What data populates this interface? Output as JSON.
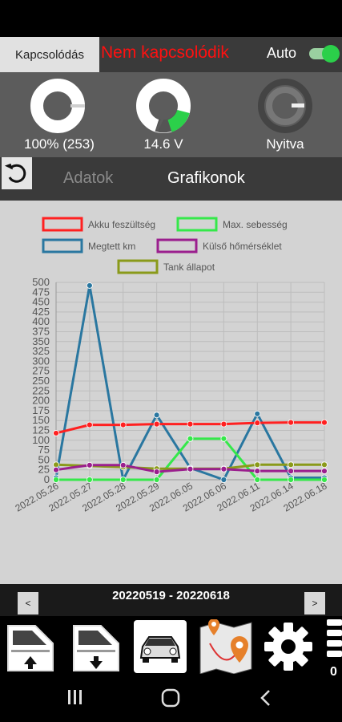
{
  "topbar": {
    "connect_label": "Kapcsolódás",
    "connection_status": "Nem kapcsolódik",
    "auto_label": "Auto",
    "auto_enabled": true
  },
  "gauges": [
    {
      "name": "battery",
      "value": "100% (253)",
      "level": 1.0
    },
    {
      "name": "voltage",
      "value": "14.6 V",
      "level": 0.25
    },
    {
      "name": "lock",
      "value": "Nyitva"
    }
  ],
  "tabs": {
    "data": "Adatok",
    "charts": "Grafikonok"
  },
  "date_range": "20220519 - 20220618",
  "nav": {
    "prev": "<",
    "next": ">"
  },
  "toolbar_counter": "0",
  "chart_data": {
    "type": "line",
    "categories": [
      "2022.05.26",
      "2022.05.27",
      "2022.05.28",
      "2022.05.29",
      "2022.06.05",
      "2022.06.06",
      "2022.06.11",
      "2022.06.14",
      "2022.06.18"
    ],
    "ylim": [
      0,
      500
    ],
    "yticks": [
      0,
      25,
      50,
      75,
      100,
      125,
      150,
      175,
      200,
      225,
      250,
      275,
      300,
      325,
      350,
      375,
      400,
      425,
      450,
      475,
      500
    ],
    "grid": true,
    "legend_position": "top",
    "series": [
      {
        "name": "Akku feszültség",
        "color": "#ff2020",
        "values": [
          118,
          139,
          139,
          141,
          141,
          141,
          144,
          145,
          145
        ]
      },
      {
        "name": "Max. sebesség",
        "color": "#35e84a",
        "values": [
          0,
          0,
          0,
          0,
          104,
          104,
          0,
          0,
          0
        ]
      },
      {
        "name": "Megtett km",
        "color": "#2a77a0",
        "values": [
          5,
          492,
          0,
          164,
          30,
          0,
          167,
          5,
          5
        ]
      },
      {
        "name": "Külső hőmérséklet",
        "color": "#9b1f8e",
        "values": [
          25,
          37,
          37,
          20,
          27,
          27,
          22,
          22,
          22
        ]
      },
      {
        "name": "Tank állapot",
        "color": "#8a9a1a",
        "values": [
          38,
          35,
          32,
          28,
          28,
          28,
          38,
          38,
          38
        ]
      }
    ]
  }
}
